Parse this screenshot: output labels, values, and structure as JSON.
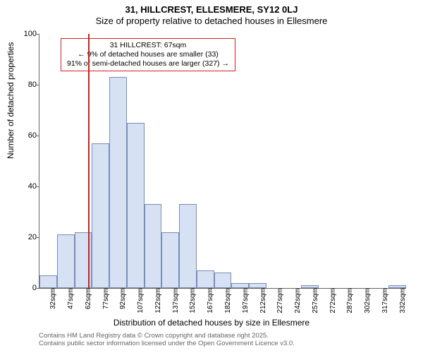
{
  "title_main": "31, HILLCREST, ELLESMERE, SY12 0LJ",
  "title_sub": "Size of property relative to detached houses in Ellesmere",
  "ylabel": "Number of detached properties",
  "xlabel": "Distribution of detached houses by size in Ellesmere",
  "chart": {
    "type": "histogram",
    "background_color": "#ffffff",
    "bar_fill": "#d6e1f3",
    "bar_border": "#7a8db5",
    "ylim": [
      0,
      100
    ],
    "ytick_step": 20,
    "yticks": [
      0,
      20,
      40,
      60,
      80,
      100
    ],
    "categories": [
      "32sqm",
      "47sqm",
      "62sqm",
      "77sqm",
      "92sqm",
      "107sqm",
      "122sqm",
      "137sqm",
      "152sqm",
      "167sqm",
      "182sqm",
      "197sqm",
      "212sqm",
      "227sqm",
      "242sqm",
      "257sqm",
      "272sqm",
      "287sqm",
      "302sqm",
      "317sqm",
      "332sqm"
    ],
    "values": [
      5,
      21,
      22,
      57,
      83,
      65,
      33,
      22,
      33,
      7,
      6,
      2,
      2,
      0,
      0,
      1,
      0,
      0,
      0,
      0,
      1
    ],
    "marker_line": {
      "color": "#d02020",
      "position_index": 2.3,
      "width": 1.5
    },
    "annotation": {
      "border_color": "#d02020",
      "background": "#ffffff",
      "fontsize": 10.5,
      "line1": "31 HILLCREST: 67sqm",
      "line2": "← 9% of detached houses are smaller (33)",
      "line3": "91% of semi-detached houses are larger (327) →"
    }
  },
  "footer_line1": "Contains HM Land Registry data © Crown copyright and database right 2025.",
  "footer_line2": "Contains public sector information licensed under the Open Government Licence v3.0."
}
